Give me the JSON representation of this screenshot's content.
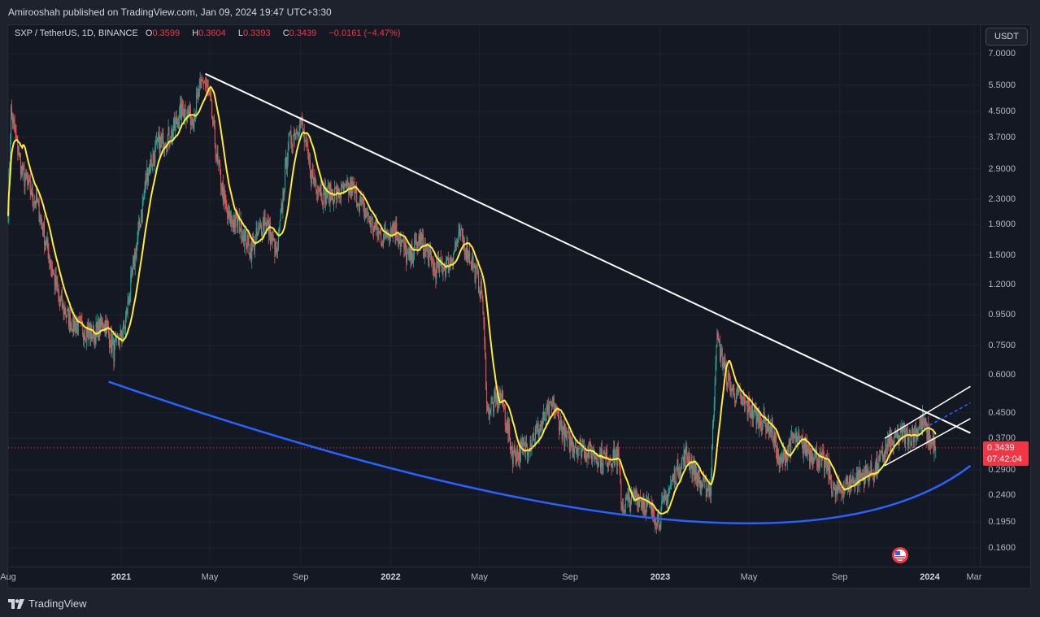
{
  "header": {
    "published": "Amirooshah published on TradingView.com, Jan 09, 2024 19:47 UTC+3:30"
  },
  "legend": {
    "symbol": "SXP / TetherUS, 1D, BINANCE",
    "open_label": "O",
    "open": "0.3599",
    "high_label": "H",
    "high": "0.3604",
    "low_label": "L",
    "low": "0.3393",
    "close_label": "C",
    "close": "0.3439",
    "change": "−0.0161 (−4.47%)"
  },
  "currency_button": "USDT",
  "price_tag": {
    "price": "0.3439",
    "countdown": "07:42:04"
  },
  "footer": {
    "brand": "TradingView"
  },
  "colors": {
    "background": "#141823",
    "up_candle": "#26a69a",
    "down_candle": "#ef5350",
    "ma_line": "#ffeb3b",
    "trendline": "#ffffff",
    "curve": "#2962ff",
    "last_price": "#f23645"
  },
  "chart_data": {
    "type": "candlestick",
    "symbol": "SXP / TetherUS",
    "interval": "1D",
    "exchange": "BINANCE",
    "scale": "log",
    "yticks": [
      "7.0000",
      "5.5000",
      "4.5000",
      "3.7000",
      "2.9000",
      "2.3000",
      "1.9000",
      "1.5000",
      "1.2000",
      "0.9500",
      "0.7500",
      "0.6000",
      "0.4500",
      "0.3700",
      "0.2900",
      "0.2400",
      "0.1950",
      "0.1600"
    ],
    "xticks": [
      "Aug",
      "2021",
      "May",
      "Sep",
      "2022",
      "May",
      "Sep",
      "2023",
      "May",
      "Sep",
      "2024",
      "Mar"
    ],
    "ylim": [
      0.14,
      8.2
    ],
    "last_price": 0.3439,
    "ohlc_last": {
      "open": 0.3599,
      "high": 0.3604,
      "low": 0.3393,
      "close": 0.3439
    },
    "series": [
      {
        "name": "SXP",
        "anchors": [
          [
            "2020-08-01",
            2.2
          ],
          [
            "2020-08-05",
            4.5
          ],
          [
            "2020-08-20",
            2.8
          ],
          [
            "2020-09-10",
            2.2
          ],
          [
            "2020-09-25",
            1.5
          ],
          [
            "2020-10-10",
            1.05
          ],
          [
            "2020-10-25",
            0.9
          ],
          [
            "2020-11-10",
            0.85
          ],
          [
            "2020-11-25",
            0.82
          ],
          [
            "2020-12-10",
            0.9
          ],
          [
            "2020-12-22",
            0.72
          ],
          [
            "2021-01-05",
            0.85
          ],
          [
            "2021-01-20",
            1.5
          ],
          [
            "2021-02-05",
            2.8
          ],
          [
            "2021-02-20",
            3.5
          ],
          [
            "2021-03-10",
            3.8
          ],
          [
            "2021-03-25",
            4.6
          ],
          [
            "2021-04-08",
            4.3
          ],
          [
            "2021-04-22",
            5.8
          ],
          [
            "2021-05-01",
            5.0
          ],
          [
            "2021-05-10",
            3.2
          ],
          [
            "2021-05-25",
            2.0
          ],
          [
            "2021-06-10",
            1.9
          ],
          [
            "2021-06-25",
            1.55
          ],
          [
            "2021-07-15",
            2.0
          ],
          [
            "2021-07-31",
            1.5
          ],
          [
            "2021-08-15",
            3.5
          ],
          [
            "2021-09-01",
            4.2
          ],
          [
            "2021-09-15",
            2.8
          ],
          [
            "2021-10-01",
            2.4
          ],
          [
            "2021-10-20",
            2.4
          ],
          [
            "2021-11-10",
            2.5
          ],
          [
            "2021-12-01",
            2.0
          ],
          [
            "2021-12-20",
            1.7
          ],
          [
            "2022-01-05",
            1.9
          ],
          [
            "2022-01-25",
            1.45
          ],
          [
            "2022-02-10",
            1.7
          ],
          [
            "2022-03-01",
            1.35
          ],
          [
            "2022-03-20",
            1.4
          ],
          [
            "2022-04-05",
            1.75
          ],
          [
            "2022-04-20",
            1.45
          ],
          [
            "2022-05-05",
            1.1
          ],
          [
            "2022-05-12",
            0.45
          ],
          [
            "2022-05-30",
            0.52
          ],
          [
            "2022-06-15",
            0.33
          ],
          [
            "2022-07-01",
            0.34
          ],
          [
            "2022-07-20",
            0.4
          ],
          [
            "2022-08-10",
            0.48
          ],
          [
            "2022-08-25",
            0.37
          ],
          [
            "2022-09-20",
            0.34
          ],
          [
            "2022-10-10",
            0.32
          ],
          [
            "2022-11-05",
            0.32
          ],
          [
            "2022-11-10",
            0.22
          ],
          [
            "2022-12-01",
            0.24
          ],
          [
            "2022-12-30",
            0.2
          ],
          [
            "2023-01-20",
            0.28
          ],
          [
            "2023-02-05",
            0.33
          ],
          [
            "2023-02-25",
            0.26
          ],
          [
            "2023-03-10",
            0.25
          ],
          [
            "2023-03-18",
            0.8
          ],
          [
            "2023-04-05",
            0.55
          ],
          [
            "2023-04-25",
            0.48
          ],
          [
            "2023-05-15",
            0.43
          ],
          [
            "2023-06-01",
            0.4
          ],
          [
            "2023-06-12",
            0.3
          ],
          [
            "2023-06-30",
            0.37
          ],
          [
            "2023-07-20",
            0.34
          ],
          [
            "2023-08-15",
            0.3
          ],
          [
            "2023-08-25",
            0.24
          ],
          [
            "2023-09-10",
            0.26
          ],
          [
            "2023-10-01",
            0.28
          ],
          [
            "2023-10-20",
            0.29
          ],
          [
            "2023-11-05",
            0.35
          ],
          [
            "2023-11-25",
            0.38
          ],
          [
            "2023-12-10",
            0.38
          ],
          [
            "2023-12-22",
            0.42
          ],
          [
            "2024-01-01",
            0.37
          ],
          [
            "2024-01-09",
            0.3439
          ]
        ]
      }
    ],
    "annotations": [
      {
        "type": "trendline",
        "from": [
          "2021-04-25",
          6.0
        ],
        "to": [
          "2024-02-25",
          0.385
        ]
      },
      {
        "type": "curve",
        "points": [
          [
            "2020-12-15",
            0.57
          ],
          [
            "2022-12-30",
            0.2
          ],
          [
            "2024-02-25",
            0.3
          ]
        ]
      },
      {
        "type": "channel",
        "upper": [
          [
            "2023-11-01",
            0.37
          ],
          [
            "2024-02-25",
            0.55
          ]
        ],
        "lower": [
          [
            "2023-11-01",
            0.3
          ],
          [
            "2024-02-25",
            0.43
          ]
        ]
      }
    ],
    "grid": true,
    "legend": "top-left"
  }
}
